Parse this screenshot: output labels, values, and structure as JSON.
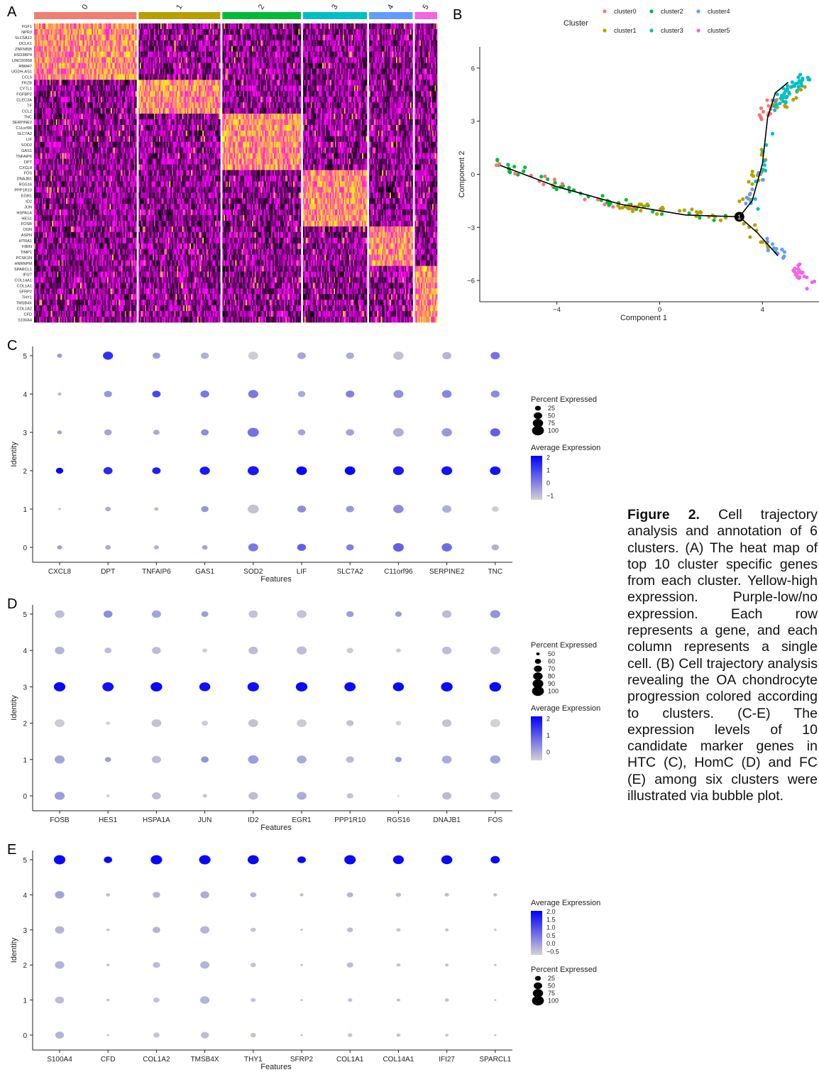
{
  "figure": {
    "panel_letters": [
      "A",
      "B",
      "C",
      "D",
      "E"
    ],
    "caption": {
      "label": "Figure 2.",
      "text": "Cell trajectory analysis and annotation of 6 clusters. (A) The heat map of top 10 cluster specific genes from each cluster. Yellow-high expression. Purple-low/no expression. Each row represents a gene, and each column represents a single cell. (B) Cell trajectory analysis revealing the OA chondrocyte progression colored according to clusters. (C-E) The expression levels of 10 candidate marker genes in HTC (C), HomC (D) and FC (E) among six clusters were illustrated via bubble plot."
    }
  },
  "chart_data": [
    {
      "panel": "A",
      "type": "heatmap",
      "columns_label": [
        "0",
        "1",
        "2",
        "3",
        "4",
        "5"
      ],
      "cluster_colors": [
        "#F07E73",
        "#B79F00",
        "#00BA38",
        "#00BFC4",
        "#619CFF",
        "#F564E3"
      ],
      "cluster_width_fraction": [
        0.261,
        0.208,
        0.2,
        0.163,
        0.111,
        0.057
      ],
      "genes": [
        "FGF1",
        "NPR3",
        "SLC5A12",
        "DCLK1",
        "ZNF585B",
        "HSD3BP4",
        "LINC00958",
        "RBM47",
        "UGDH-AS1",
        "CCL5",
        "FRZB",
        "CYTL1",
        "FGFBP2",
        "CLEC3A",
        "TF",
        "CCL2",
        "TNC",
        "SERPINE2",
        "C11orf96",
        "SLC7A2",
        "LIF",
        "SOD2",
        "GAS1",
        "TNFAIP6",
        "DPT",
        "CXCL8",
        "FOS",
        "DNAJB1",
        "RGS16",
        "PPP1R10",
        "EGR1",
        "ID2",
        "JUN",
        "HSPA1A",
        "HES1",
        "FOSB",
        "OGN",
        "ASPN",
        "HTRA1",
        "FIBIN",
        "TIMP1",
        "PCSK1N",
        "HNRNPM",
        "SPARCL1",
        "IFI27",
        "COL14A1",
        "COL1A1",
        "SFRP2",
        "THY1",
        "TMSB4X",
        "COL1A2",
        "CFD",
        "S100A4"
      ],
      "gene_block_cluster": [
        0,
        0,
        0,
        0,
        0,
        0,
        0,
        0,
        0,
        0,
        1,
        1,
        1,
        1,
        1,
        1,
        2,
        2,
        2,
        2,
        2,
        2,
        2,
        2,
        2,
        2,
        3,
        3,
        3,
        3,
        3,
        3,
        3,
        3,
        3,
        3,
        4,
        4,
        4,
        4,
        4,
        4,
        4,
        5,
        5,
        5,
        5,
        5,
        5,
        5,
        5,
        5,
        5
      ],
      "color_scale": [
        "#000000",
        "#FF00FF",
        "#FFFF00"
      ]
    },
    {
      "panel": "B",
      "type": "scatter",
      "xlabel": "Component 1",
      "ylabel": "Component 2",
      "xticks": [
        -4,
        0,
        4
      ],
      "yticks": [
        6,
        3,
        0,
        -3,
        -6
      ],
      "xlim": [
        -7,
        6.2
      ],
      "ylim": [
        -7.2,
        7.2
      ],
      "legend_title": "Cluster",
      "legend_entries": [
        "cluster0",
        "cluster2",
        "cluster4",
        "cluster1",
        "cluster3",
        "cluster5"
      ],
      "series": [
        {
          "name": "cluster0",
          "color": "#F8766D",
          "clusters_order": 0
        },
        {
          "name": "cluster1",
          "color": "#B79F00",
          "clusters_order": 1
        },
        {
          "name": "cluster2",
          "color": "#00BA38",
          "clusters_order": 2
        },
        {
          "name": "cluster3",
          "color": "#00BFC4",
          "clusters_order": 3
        },
        {
          "name": "cluster4",
          "color": "#619CFF",
          "clusters_order": 4
        },
        {
          "name": "cluster5",
          "color": "#F564E3",
          "clusters_order": 5
        }
      ],
      "trajectory": [
        [
          -6.2,
          0.5
        ],
        [
          -4,
          -0.7
        ],
        [
          -1.5,
          -1.7
        ],
        [
          1,
          -2.3
        ],
        [
          3.1,
          -2.4
        ],
        [
          3.6,
          -1.5
        ],
        [
          4.0,
          0.6
        ],
        [
          4.2,
          3.2
        ],
        [
          4.5,
          4.6
        ],
        [
          5.0,
          5.2
        ]
      ],
      "trajectory_branch": [
        [
          3.1,
          -2.4
        ],
        [
          3.8,
          -3.3
        ],
        [
          4.6,
          -4.6
        ]
      ],
      "branch_node": {
        "x": 3.1,
        "y": -2.4,
        "label": "1"
      }
    },
    {
      "panel": "C",
      "type": "scatter",
      "subtype": "dotplot",
      "xlabel": "Features",
      "ylabel": "Identity",
      "features": [
        "CXCL8",
        "DPT",
        "TNFAIP6",
        "GAS1",
        "SOD2",
        "LIF",
        "SLC7A2",
        "C11orf96",
        "SERPINE2",
        "TNC"
      ],
      "identities": [
        "0",
        "1",
        "2",
        "3",
        "4",
        "5"
      ],
      "size_legend_title": "Percent Expressed",
      "size_legend": [
        25,
        50,
        75,
        100
      ],
      "color_legend_title": "Average Expression",
      "color_legend": [
        2,
        1,
        0,
        -1
      ],
      "color_range": [
        -1.3,
        2.2
      ],
      "size_range": [
        0,
        100
      ],
      "legend_order": [
        "size",
        "color"
      ],
      "percent": [
        [
          18,
          22,
          18,
          22,
          70,
          55,
          42,
          80,
          75,
          38
        ],
        [
          6,
          22,
          14,
          40,
          85,
          52,
          45,
          75,
          60,
          32
        ],
        [
          38,
          58,
          50,
          72,
          88,
          80,
          78,
          82,
          82,
          80
        ],
        [
          16,
          40,
          28,
          42,
          90,
          40,
          48,
          80,
          75,
          72
        ],
        [
          10,
          45,
          50,
          55,
          72,
          40,
          52,
          70,
          65,
          55
        ],
        [
          18,
          72,
          42,
          45,
          70,
          50,
          45,
          75,
          58,
          60
        ]
      ],
      "avg": [
        [
          -0.4,
          -0.6,
          -0.7,
          -0.5,
          0.2,
          0.6,
          0.1,
          0.6,
          0.4,
          -0.7
        ],
        [
          -1.1,
          -0.6,
          -0.9,
          -0.3,
          -1.0,
          -0.1,
          -0.3,
          -0.1,
          -0.7,
          -1.2
        ],
        [
          2.2,
          1.5,
          1.7,
          1.8,
          1.8,
          2.1,
          2.2,
          1.8,
          1.9,
          1.9
        ],
        [
          -0.5,
          -0.5,
          -0.6,
          -0.1,
          0.3,
          -0.5,
          -0.5,
          -0.7,
          -0.3,
          0.6
        ],
        [
          -0.8,
          -0.3,
          1.0,
          0.2,
          0.2,
          -0.6,
          0.1,
          -0.2,
          0.0,
          -0.1
        ],
        [
          -0.3,
          1.4,
          -0.4,
          -0.7,
          -1.2,
          -0.5,
          -0.6,
          -1.0,
          -0.8,
          0.3
        ]
      ]
    },
    {
      "panel": "D",
      "type": "scatter",
      "subtype": "dotplot",
      "xlabel": "Features",
      "ylabel": "Identity",
      "features": [
        "FOSB",
        "HES1",
        "HSPA1A",
        "JUN",
        "ID2",
        "EGR1",
        "PPP1R10",
        "RGS16",
        "DNAJB1",
        "FOS"
      ],
      "identities": [
        "0",
        "1",
        "2",
        "3",
        "4",
        "5"
      ],
      "size_legend_title": "Percent Expressed",
      "size_legend": [
        50,
        60,
        70,
        80,
        90,
        100
      ],
      "color_legend_title": "Average Expression",
      "color_legend": [
        2,
        1,
        0
      ],
      "color_range": [
        -0.5,
        2.2
      ],
      "size_range": [
        45,
        100
      ],
      "legend_order": [
        "size",
        "color"
      ],
      "percent": [
        [
          84,
          50,
          76,
          52,
          80,
          82,
          62,
          47,
          78,
          80
        ],
        [
          84,
          60,
          78,
          68,
          88,
          82,
          70,
          62,
          82,
          86
        ],
        [
          82,
          52,
          82,
          60,
          82,
          82,
          66,
          56,
          80,
          84
        ],
        [
          96,
          94,
          97,
          92,
          96,
          97,
          94,
          92,
          97,
          98
        ],
        [
          80,
          64,
          76,
          54,
          80,
          84,
          62,
          54,
          80,
          82
        ],
        [
          80,
          76,
          78,
          64,
          78,
          82,
          66,
          62,
          80,
          84
        ]
      ],
      "avg": [
        [
          0.2,
          -0.5,
          -0.2,
          -0.3,
          -0.2,
          0.0,
          -0.3,
          -0.5,
          -0.2,
          -0.3
        ],
        [
          0.1,
          0.2,
          -0.2,
          0.3,
          0.2,
          0.0,
          -0.2,
          0.2,
          0.0,
          0.1
        ],
        [
          -0.4,
          -0.5,
          -0.3,
          -0.4,
          -0.3,
          -0.4,
          -0.3,
          -0.5,
          -0.3,
          -0.5
        ],
        [
          2.1,
          2.0,
          2.1,
          2.0,
          2.0,
          2.1,
          2.1,
          2.1,
          2.1,
          2.1
        ],
        [
          -0.1,
          -0.2,
          -0.2,
          -0.4,
          -0.2,
          -0.2,
          -0.4,
          -0.4,
          -0.2,
          -0.3
        ],
        [
          -0.2,
          0.4,
          0.1,
          0.2,
          -0.3,
          -0.3,
          0.2,
          0.2,
          -0.2,
          0.3
        ]
      ]
    },
    {
      "panel": "E",
      "type": "scatter",
      "subtype": "dotplot",
      "xlabel": "Features",
      "ylabel": "Identity",
      "features": [
        "S100A4",
        "CFD",
        "COL1A2",
        "TMSB4X",
        "THY1",
        "SFRP2",
        "COL1A1",
        "COL14A1",
        "IFI27",
        "SPARCL1"
      ],
      "identities": [
        "0",
        "1",
        "2",
        "3",
        "4",
        "5"
      ],
      "size_legend_title": "Percent Expressed",
      "size_legend": [
        25,
        50,
        75,
        100
      ],
      "color_legend_title": "Average Expression",
      "color_legend": [
        2.0,
        1.5,
        1.0,
        0.5,
        0.0,
        -0.5
      ],
      "color_range": [
        -0.6,
        2.1
      ],
      "size_range": [
        0,
        100
      ],
      "legend_order": [
        "color",
        "size"
      ],
      "percent": [
        [
          55,
          5,
          28,
          45,
          22,
          4,
          15,
          12,
          8,
          4
        ],
        [
          55,
          8,
          28,
          62,
          18,
          5,
          15,
          10,
          12,
          4
        ],
        [
          62,
          8,
          38,
          60,
          22,
          5,
          30,
          12,
          10,
          5
        ],
        [
          60,
          8,
          42,
          60,
          20,
          5,
          25,
          12,
          10,
          5
        ],
        [
          62,
          12,
          40,
          55,
          28,
          10,
          28,
          20,
          14,
          10
        ],
        [
          92,
          48,
          92,
          92,
          88,
          50,
          92,
          82,
          86,
          60
        ]
      ],
      "avg": [
        [
          -0.2,
          -0.5,
          -0.4,
          -0.3,
          -0.4,
          -0.4,
          -0.4,
          -0.4,
          -0.4,
          -0.4
        ],
        [
          -0.3,
          -0.4,
          -0.4,
          -0.2,
          -0.4,
          -0.4,
          -0.4,
          -0.4,
          -0.4,
          -0.4
        ],
        [
          -0.2,
          -0.4,
          -0.3,
          -0.2,
          -0.4,
          -0.4,
          -0.3,
          -0.4,
          -0.4,
          -0.4
        ],
        [
          -0.2,
          -0.4,
          -0.2,
          -0.2,
          -0.4,
          -0.4,
          -0.3,
          -0.4,
          -0.4,
          -0.4
        ],
        [
          0.0,
          -0.3,
          -0.2,
          -0.1,
          -0.2,
          -0.3,
          -0.2,
          -0.3,
          -0.3,
          -0.3
        ],
        [
          2.0,
          2.0,
          2.0,
          2.0,
          2.0,
          2.0,
          2.0,
          2.0,
          2.0,
          2.0
        ]
      ]
    }
  ]
}
